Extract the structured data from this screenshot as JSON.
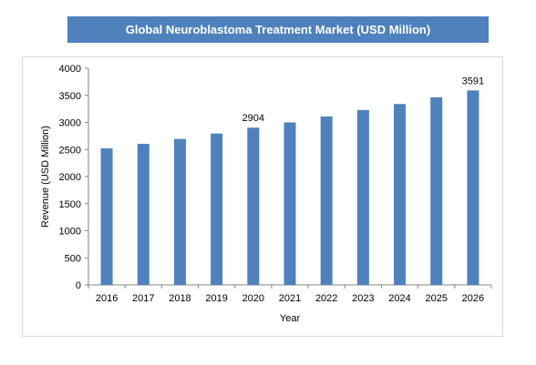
{
  "chart_data": {
    "type": "bar",
    "title": "Global Neuroblastoma Treatment Market (USD Million)",
    "xlabel": "Year",
    "ylabel": "Revenue (USD Million)",
    "categories": [
      "2016",
      "2017",
      "2018",
      "2019",
      "2020",
      "2021",
      "2022",
      "2023",
      "2024",
      "2025",
      "2026"
    ],
    "values": [
      2520,
      2605,
      2695,
      2795,
      2904,
      3000,
      3110,
      3230,
      3340,
      3465,
      3591
    ],
    "data_labels": [
      {
        "category": "2020",
        "value": 2904,
        "text": "2904"
      },
      {
        "category": "2026",
        "value": 3591,
        "text": "3591"
      }
    ],
    "ylim": [
      0,
      4000
    ],
    "yticks": [
      0,
      500,
      1000,
      1500,
      2000,
      2500,
      3000,
      3500,
      4000
    ],
    "grid": false,
    "legend": "none",
    "bar_color": "#4f81bd"
  }
}
